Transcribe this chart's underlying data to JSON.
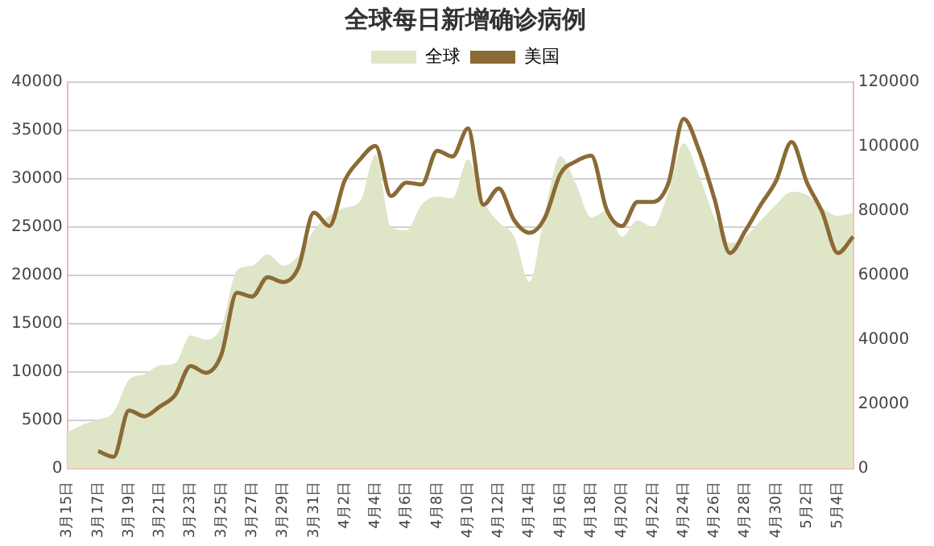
{
  "chart_data": {
    "type": "line",
    "title": "全球每日新增确诊病例",
    "categories": [
      "3月15日",
      null,
      "3月17日",
      null,
      "3月19日",
      null,
      "3月21日",
      null,
      "3月23日",
      null,
      "3月25日",
      null,
      "3月27日",
      null,
      "3月29日",
      null,
      "3月31日",
      null,
      "4月2日",
      null,
      "4月4日",
      null,
      "4月6日",
      null,
      "4月8日",
      null,
      "4月10日",
      null,
      "4月12日",
      null,
      "4月14日",
      null,
      "4月16日",
      null,
      "4月18日",
      null,
      "4月20日",
      null,
      "4月22日",
      null,
      "4月24日",
      null,
      "4月26日",
      null,
      "4月28日",
      null,
      "4月30日",
      null,
      "5月2日",
      null,
      "5月4日",
      null
    ],
    "series": [
      {
        "name": "全球",
        "type": "area",
        "axis": "y2",
        "color": "#dfe6c8",
        "values": [
          11200,
          13600,
          15200,
          17500,
          27500,
          29300,
          32000,
          32700,
          41300,
          40000,
          44000,
          61500,
          63000,
          66500,
          63000,
          66000,
          74000,
          78500,
          81000,
          83000,
          97500,
          75000,
          74000,
          82000,
          84500,
          84000,
          96000,
          83000,
          76500,
          72000,
          58000,
          80000,
          97000,
          88500,
          78000,
          80000,
          72000,
          77000,
          75000,
          86000,
          101000,
          91000,
          78000,
          70000,
          72000,
          77000,
          82000,
          86000,
          85000,
          81000,
          78500,
          79500
        ]
      },
      {
        "name": "美国",
        "type": "line",
        "color": "#8b6a35",
        "values": [
          null,
          null,
          1800,
          1200,
          6000,
          5400,
          6400,
          7600,
          10600,
          9900,
          11800,
          18200,
          17800,
          19800,
          19300,
          20800,
          26500,
          25100,
          29800,
          32000,
          33400,
          28200,
          29600,
          29400,
          32900,
          32300,
          35200,
          27300,
          29000,
          25700,
          24400,
          26000,
          30500,
          31800,
          32400,
          26800,
          25100,
          27600,
          27600,
          29500,
          36200,
          32900,
          27900,
          22300,
          24600,
          27300,
          29800,
          33800,
          29600,
          26500,
          22300,
          24000
        ]
      }
    ],
    "ylim": [
      0,
      40000
    ],
    "yticks": [
      0,
      5000,
      10000,
      15000,
      20000,
      25000,
      30000,
      35000,
      40000
    ],
    "y2lim": [
      0,
      120000
    ],
    "y2ticks": [
      0,
      20000,
      40000,
      60000,
      80000,
      100000,
      120000
    ],
    "grid": "y",
    "legend": "top",
    "marker": "none"
  }
}
